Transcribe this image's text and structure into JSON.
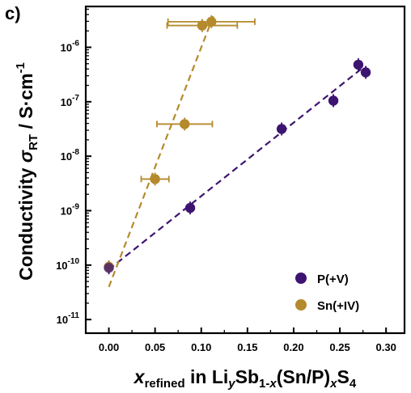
{
  "chart_data": {
    "type": "scatter",
    "panel_label": "c)",
    "ylabel": {
      "main": "Conductivity ",
      "symbol": "σ",
      "sub": "RT",
      "unit": " / S·cm",
      "sup": "-1"
    },
    "xlabel": {
      "x": "x",
      "xsub": "refined",
      "mid": " in Li",
      "y": "y",
      "part1": "Sb",
      "sub1": "1-",
      "subx": "x",
      "part2": "(Sn/P)",
      "subx2": "x",
      "part3": "S",
      "sub3": "4"
    },
    "x_ticks": [
      "0.00",
      "0.05",
      "0.10",
      "0.15",
      "0.20",
      "0.25",
      "0.30"
    ],
    "y_ticks": [
      {
        "base": "10",
        "exp": "-6"
      },
      {
        "base": "10",
        "exp": "-7"
      },
      {
        "base": "10",
        "exp": "-8"
      },
      {
        "base": "10",
        "exp": "-9"
      },
      {
        "base": "10",
        "exp": "-10"
      },
      {
        "base": "10",
        "exp": "-11"
      }
    ],
    "xlim": [
      -0.025,
      0.32
    ],
    "ylim_log10": [
      -11.25,
      -5.25
    ],
    "yscale": "log",
    "legend_position": "bottom-right",
    "series": [
      {
        "name": "P(+V)",
        "color": "#3d1470",
        "fit_line": [
          [
            0.0,
            -10.08
          ],
          [
            0.273,
            -6.4
          ]
        ],
        "points": [
          {
            "x": 0.0,
            "log10y": -10.05
          },
          {
            "x": 0.088,
            "log10y": -8.95
          },
          {
            "x": 0.187,
            "log10y": -7.5
          },
          {
            "x": 0.243,
            "log10y": -6.98
          },
          {
            "x": 0.27,
            "log10y": -6.32
          },
          {
            "x": 0.278,
            "log10y": -6.46
          }
        ]
      },
      {
        "name": "Sn(+IV)",
        "color": "#b58a2c",
        "fit_line": [
          [
            0.0,
            -10.4
          ],
          [
            0.113,
            -5.43
          ]
        ],
        "points": [
          {
            "x": 0.0,
            "log10y": -10.03,
            "xerr": 0
          },
          {
            "x": 0.05,
            "log10y": -8.42,
            "xerr": 0.015
          },
          {
            "x": 0.082,
            "log10y": -7.41,
            "xerr": 0.03
          },
          {
            "x": 0.101,
            "log10y": -5.6,
            "xerr": 0.038
          },
          {
            "x": 0.111,
            "log10y": -5.53,
            "xerr": 0.047
          }
        ]
      }
    ]
  }
}
